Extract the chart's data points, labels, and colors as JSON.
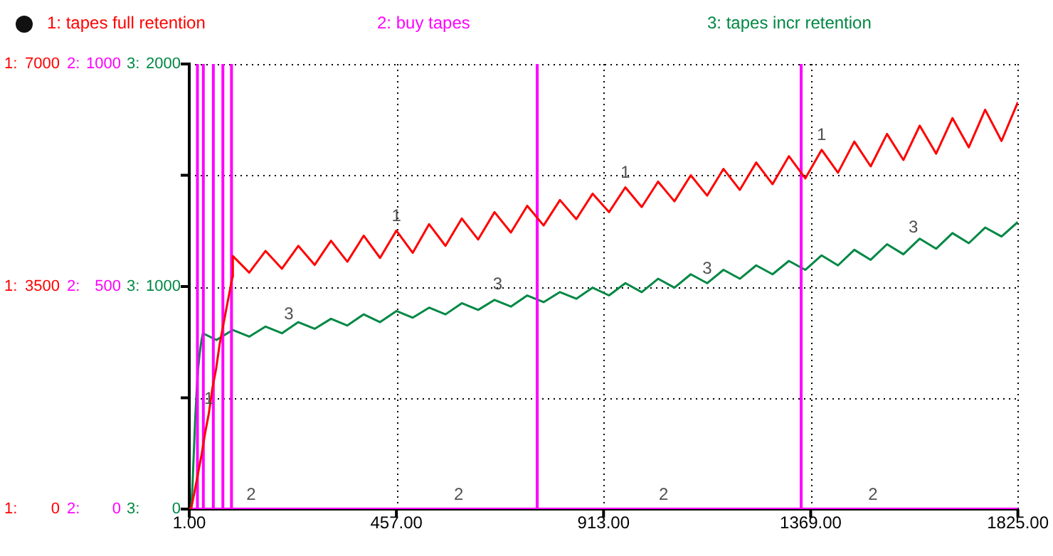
{
  "chart_data": {
    "type": "line",
    "xlim": [
      1,
      1825
    ],
    "xticks": [
      {
        "value": 1,
        "label": "1.00"
      },
      {
        "value": 457,
        "label": "457.00"
      },
      {
        "value": 913,
        "label": "913.00"
      },
      {
        "value": 1369,
        "label": "1369.00"
      },
      {
        "value": 1825,
        "label": "1825.00"
      }
    ],
    "ylim": [
      0,
      7000
    ],
    "ylabel": "1:",
    "y2label": "2:",
    "y3label": "3:",
    "yticks": [
      0,
      {
        "value": 1750,
        "label": null
      },
      3500,
      {
        "value": 5250,
        "label": null
      },
      7000
    ],
    "y2lim": [
      0,
      1000
    ],
    "y2ticks": [
      0,
      500,
      1000
    ],
    "y3lim": [
      0,
      2000
    ],
    "y3ticks": [
      0,
      1000,
      2000
    ],
    "grid": true,
    "legend": "top",
    "series": [
      {
        "name": "1: tapes full retention",
        "color": "#ff0000",
        "axis": "y",
        "x": [
          1,
          5,
          12,
          20,
          28,
          36,
          44,
          52,
          60,
          68,
          76,
          84,
          92,
          96,
          97,
          133,
          169,
          205,
          241,
          277,
          313,
          349,
          385,
          421,
          457,
          493,
          529,
          565,
          601,
          637,
          673,
          709,
          745,
          781,
          817,
          853,
          889,
          925,
          961,
          997,
          1033,
          1069,
          1105,
          1141,
          1177,
          1213,
          1249,
          1285,
          1321,
          1357,
          1393,
          1429,
          1465,
          1501,
          1537,
          1573,
          1609,
          1645,
          1681,
          1717,
          1753,
          1789,
          1825
        ],
        "values": [
          0,
          0,
          250,
          550,
          850,
          1200,
          1500,
          1900,
          2200,
          2600,
          2900,
          3200,
          3500,
          3650,
          3980,
          3720,
          4060,
          3780,
          4140,
          3840,
          4220,
          3890,
          4300,
          3950,
          4380,
          4030,
          4480,
          4140,
          4570,
          4240,
          4670,
          4350,
          4770,
          4460,
          4860,
          4560,
          4960,
          4670,
          5060,
          4750,
          5150,
          4840,
          5250,
          4930,
          5350,
          5020,
          5450,
          5110,
          5550,
          5200,
          5650,
          5290,
          5780,
          5390,
          5900,
          5490,
          6030,
          5590,
          6150,
          5690,
          6280,
          5790,
          6400
        ]
      },
      {
        "name": "2: buy tapes",
        "color": "#ff00ff",
        "axis": "y2",
        "x": [
          1,
          19,
          19,
          19,
          32,
          32,
          32,
          54,
          54,
          54,
          75,
          75,
          75,
          94,
          94,
          94,
          767,
          767,
          767,
          1348,
          1348,
          1348,
          1825
        ],
        "values": [
          0,
          0,
          1000,
          0,
          0,
          1000,
          0,
          0,
          1000,
          0,
          0,
          1000,
          0,
          0,
          1000,
          0,
          0,
          1000,
          0,
          0,
          1000,
          0,
          0
        ]
      },
      {
        "name": "3: tapes incr retention",
        "color": "#008844",
        "axis": "y3",
        "x": [
          1,
          5,
          8,
          11,
          14,
          17,
          20,
          24,
          28,
          31,
          61,
          97,
          133,
          169,
          205,
          241,
          277,
          313,
          349,
          385,
          421,
          457,
          493,
          529,
          565,
          601,
          637,
          673,
          709,
          745,
          781,
          817,
          853,
          889,
          925,
          961,
          997,
          1033,
          1069,
          1105,
          1141,
          1177,
          1213,
          1249,
          1285,
          1321,
          1357,
          1393,
          1429,
          1465,
          1501,
          1537,
          1573,
          1609,
          1645,
          1681,
          1717,
          1753,
          1789,
          1825
        ],
        "values": [
          0,
          0,
          100,
          250,
          400,
          520,
          620,
          700,
          760,
          790,
          760,
          805,
          775,
          820,
          790,
          840,
          810,
          855,
          825,
          875,
          840,
          890,
          860,
          905,
          875,
          925,
          895,
          940,
          910,
          960,
          930,
          975,
          945,
          995,
          960,
          1015,
          975,
          1035,
          995,
          1055,
          1015,
          1075,
          1035,
          1095,
          1055,
          1115,
          1075,
          1140,
          1095,
          1165,
          1120,
          1190,
          1145,
          1215,
          1170,
          1240,
          1195,
          1265,
          1225,
          1290
        ]
      }
    ],
    "annotations": [
      {
        "text": "1",
        "x": 44,
        "y": 1500
      },
      {
        "text": "1",
        "x": 457,
        "y": 4380
      },
      {
        "text": "1",
        "x": 961,
        "y": 5060
      },
      {
        "text": "1",
        "x": 1393,
        "y": 5650
      },
      {
        "text": "2",
        "x": 137,
        "y": 0
      },
      {
        "text": "2",
        "x": 594,
        "y": 0
      },
      {
        "text": "2",
        "x": 1045,
        "y": 0
      },
      {
        "text": "2",
        "x": 1506,
        "y": 0
      },
      {
        "text": "3",
        "x": 220,
        "y": 2840
      },
      {
        "text": "3",
        "x": 680,
        "y": 3310
      },
      {
        "text": "3",
        "x": 1141,
        "y": 3550
      },
      {
        "text": "3",
        "x": 1595,
        "y": 4200
      }
    ]
  }
}
